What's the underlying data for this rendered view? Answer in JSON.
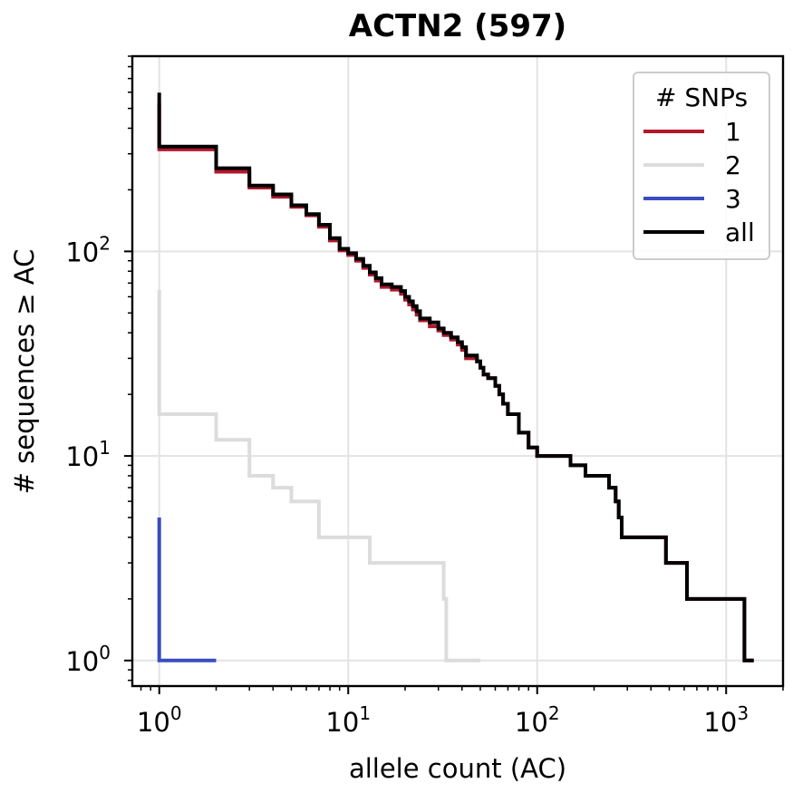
{
  "chart_data": {
    "type": "line",
    "title": "ACTN2 (597)",
    "xlabel": "allele count (AC)",
    "ylabel": "# sequences ≥ AC",
    "xscale": "log",
    "yscale": "log",
    "xlim": [
      0.72,
      2000
    ],
    "ylim": [
      0.75,
      900
    ],
    "grid": true,
    "x_ticks": [
      {
        "value": 1,
        "base": "10",
        "exp": "0"
      },
      {
        "value": 10,
        "base": "10",
        "exp": "1"
      },
      {
        "value": 100,
        "base": "10",
        "exp": "2"
      },
      {
        "value": 1000,
        "base": "10",
        "exp": "3"
      }
    ],
    "y_ticks": [
      {
        "value": 1,
        "base": "10",
        "exp": "0"
      },
      {
        "value": 10,
        "base": "10",
        "exp": "1"
      },
      {
        "value": 100,
        "base": "10",
        "exp": "2"
      }
    ],
    "legend": {
      "title": "# SNPs",
      "placement": "top-right"
    },
    "series": [
      {
        "name": "1",
        "color": "#b2182b",
        "points": [
          [
            1,
            530
          ],
          [
            1,
            315
          ],
          [
            2,
            315
          ],
          [
            2,
            245
          ],
          [
            3,
            245
          ],
          [
            3,
            205
          ],
          [
            4,
            205
          ],
          [
            4,
            185
          ],
          [
            5,
            185
          ],
          [
            5,
            165
          ],
          [
            6,
            165
          ],
          [
            6,
            150
          ],
          [
            7,
            150
          ],
          [
            7,
            132
          ],
          [
            8,
            132
          ],
          [
            8,
            113
          ],
          [
            9,
            113
          ],
          [
            9,
            101
          ],
          [
            10,
            101
          ],
          [
            10,
            96
          ],
          [
            11,
            96
          ],
          [
            11,
            90
          ],
          [
            12,
            90
          ],
          [
            12,
            83
          ],
          [
            13,
            83
          ],
          [
            13,
            77
          ],
          [
            14,
            77
          ],
          [
            14,
            72
          ],
          [
            15,
            72
          ],
          [
            15,
            67
          ],
          [
            17,
            67
          ],
          [
            17,
            65
          ],
          [
            19,
            65
          ],
          [
            19,
            62
          ],
          [
            20,
            62
          ],
          [
            20,
            58
          ],
          [
            21,
            58
          ],
          [
            21,
            55
          ],
          [
            22,
            55
          ],
          [
            22,
            52
          ],
          [
            23,
            52
          ],
          [
            23,
            49
          ],
          [
            24,
            49
          ],
          [
            24,
            46
          ],
          [
            27,
            46
          ],
          [
            27,
            43
          ],
          [
            30,
            43
          ],
          [
            30,
            41
          ],
          [
            32,
            41
          ],
          [
            32,
            39
          ],
          [
            35,
            39
          ],
          [
            35,
            37
          ],
          [
            38,
            37
          ],
          [
            38,
            35
          ],
          [
            40,
            35
          ],
          [
            40,
            33
          ],
          [
            42,
            33
          ],
          [
            42,
            30
          ],
          [
            48,
            30
          ],
          [
            48,
            29
          ],
          [
            50,
            29
          ],
          [
            50,
            27
          ],
          [
            52,
            27
          ],
          [
            52,
            25
          ],
          [
            55,
            25
          ],
          [
            55,
            24
          ],
          [
            60,
            24
          ],
          [
            60,
            22
          ],
          [
            63,
            22
          ],
          [
            63,
            20
          ],
          [
            66,
            20
          ],
          [
            66,
            18
          ],
          [
            70,
            18
          ],
          [
            70,
            16
          ],
          [
            80,
            16
          ],
          [
            80,
            13
          ],
          [
            90,
            13
          ],
          [
            90,
            11
          ],
          [
            100,
            11
          ],
          [
            100,
            10
          ],
          [
            150,
            10
          ],
          [
            150,
            9
          ],
          [
            180,
            9
          ],
          [
            180,
            8
          ],
          [
            240,
            8
          ],
          [
            240,
            7
          ],
          [
            260,
            7
          ],
          [
            260,
            6
          ],
          [
            270,
            6
          ],
          [
            270,
            5
          ],
          [
            280,
            5
          ],
          [
            280,
            4
          ],
          [
            480,
            4
          ],
          [
            480,
            3
          ],
          [
            620,
            3
          ],
          [
            620,
            2
          ],
          [
            1250,
            2
          ],
          [
            1250,
            1
          ],
          [
            1400,
            1
          ]
        ]
      },
      {
        "name": "2",
        "color": "#dcdcdc",
        "points": [
          [
            1,
            65
          ],
          [
            1,
            16
          ],
          [
            2,
            16
          ],
          [
            2,
            12
          ],
          [
            3,
            12
          ],
          [
            3,
            8
          ],
          [
            4,
            8
          ],
          [
            4,
            7
          ],
          [
            5,
            7
          ],
          [
            5,
            6
          ],
          [
            7,
            6
          ],
          [
            7,
            4
          ],
          [
            13,
            4
          ],
          [
            13,
            3
          ],
          [
            32,
            3
          ],
          [
            32,
            2
          ],
          [
            33,
            2
          ],
          [
            33,
            1
          ],
          [
            50,
            1
          ]
        ]
      },
      {
        "name": "3",
        "color": "#3b4cc0",
        "points": [
          [
            1,
            5
          ],
          [
            1,
            1
          ],
          [
            2,
            1
          ]
        ]
      },
      {
        "name": "all",
        "color": "#000000",
        "points": [
          [
            1,
            597
          ],
          [
            1,
            325
          ],
          [
            2,
            325
          ],
          [
            2,
            255
          ],
          [
            3,
            255
          ],
          [
            3,
            210
          ],
          [
            4,
            210
          ],
          [
            4,
            190
          ],
          [
            5,
            190
          ],
          [
            5,
            168
          ],
          [
            6,
            168
          ],
          [
            6,
            152
          ],
          [
            7,
            152
          ],
          [
            7,
            135
          ],
          [
            8,
            135
          ],
          [
            8,
            116
          ],
          [
            9,
            116
          ],
          [
            9,
            103
          ],
          [
            10,
            103
          ],
          [
            10,
            98
          ],
          [
            11,
            98
          ],
          [
            11,
            92
          ],
          [
            12,
            92
          ],
          [
            12,
            85
          ],
          [
            13,
            85
          ],
          [
            13,
            79
          ],
          [
            14,
            79
          ],
          [
            14,
            74
          ],
          [
            15,
            74
          ],
          [
            15,
            69
          ],
          [
            17,
            69
          ],
          [
            17,
            67
          ],
          [
            19,
            67
          ],
          [
            19,
            64
          ],
          [
            20,
            64
          ],
          [
            20,
            60
          ],
          [
            21,
            60
          ],
          [
            21,
            57
          ],
          [
            22,
            57
          ],
          [
            22,
            54
          ],
          [
            23,
            54
          ],
          [
            23,
            51
          ],
          [
            24,
            51
          ],
          [
            24,
            47
          ],
          [
            27,
            47
          ],
          [
            27,
            45
          ],
          [
            30,
            45
          ],
          [
            30,
            42
          ],
          [
            32,
            42
          ],
          [
            32,
            40
          ],
          [
            35,
            40
          ],
          [
            35,
            38
          ],
          [
            38,
            38
          ],
          [
            38,
            36
          ],
          [
            40,
            36
          ],
          [
            40,
            34
          ],
          [
            42,
            34
          ],
          [
            42,
            31
          ],
          [
            48,
            31
          ],
          [
            48,
            29
          ],
          [
            50,
            29
          ],
          [
            50,
            27
          ],
          [
            52,
            27
          ],
          [
            52,
            25
          ],
          [
            55,
            25
          ],
          [
            55,
            24
          ],
          [
            60,
            24
          ],
          [
            60,
            22
          ],
          [
            63,
            22
          ],
          [
            63,
            20
          ],
          [
            66,
            20
          ],
          [
            66,
            18
          ],
          [
            70,
            18
          ],
          [
            70,
            16
          ],
          [
            80,
            16
          ],
          [
            80,
            13
          ],
          [
            90,
            13
          ],
          [
            90,
            11
          ],
          [
            100,
            11
          ],
          [
            100,
            10
          ],
          [
            150,
            10
          ],
          [
            150,
            9
          ],
          [
            180,
            9
          ],
          [
            180,
            8
          ],
          [
            240,
            8
          ],
          [
            240,
            7
          ],
          [
            260,
            7
          ],
          [
            260,
            6
          ],
          [
            270,
            6
          ],
          [
            270,
            5
          ],
          [
            280,
            5
          ],
          [
            280,
            4
          ],
          [
            480,
            4
          ],
          [
            480,
            3
          ],
          [
            620,
            3
          ],
          [
            620,
            2
          ],
          [
            1250,
            2
          ],
          [
            1250,
            1
          ],
          [
            1400,
            1
          ]
        ]
      }
    ]
  }
}
